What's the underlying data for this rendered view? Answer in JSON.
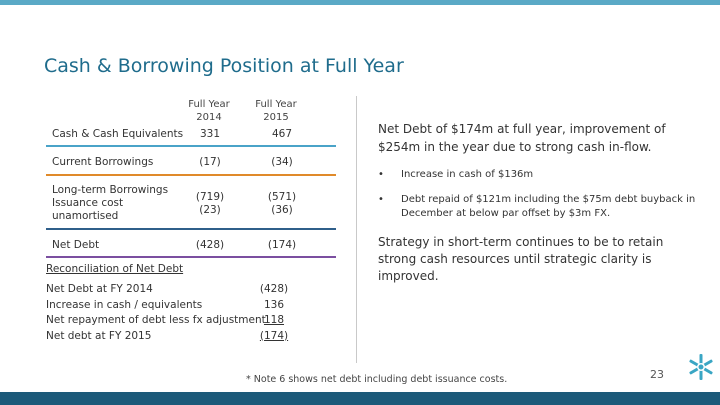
{
  "slide": {
    "title": "Cash & Borrowing Position at Full Year",
    "page_number": "23"
  },
  "table": {
    "columns": [
      {
        "line1": "Full Year",
        "line2": "2014"
      },
      {
        "line1": "Full Year",
        "line2": "2015"
      }
    ],
    "rows": [
      {
        "label": "Cash & Cash Equivalents",
        "v2014": "331",
        "v2015": "467",
        "rule_color": "#4aa3c8"
      },
      {
        "label": "Current Borrowings",
        "v2014": "(17)",
        "v2015": "(34)",
        "rule_color": "#e08a2a"
      },
      {
        "label_lines": [
          "Long-term Borrowings",
          "Issuance cost",
          "unamortised"
        ],
        "v2014_lines": [
          "(719)",
          "(23)"
        ],
        "v2015_lines": [
          "(571)",
          "(36)"
        ],
        "rule_color": "#2f5f8a"
      },
      {
        "label": "Net Debt",
        "v2014": "(428)",
        "v2015": "(174)",
        "rule_color": "#7b4fa0"
      }
    ]
  },
  "reconciliation": {
    "title": "Reconciliation of Net Debt",
    "lines": [
      {
        "label": "Net Debt at FY 2014",
        "value": "(428)"
      },
      {
        "label": "Increase in cash / equivalents",
        "value": "136"
      },
      {
        "label": "Net repayment of debt less fx adjustment",
        "value": "118"
      },
      {
        "label": "Net debt at FY 2015",
        "value": "(174)"
      }
    ]
  },
  "summary": {
    "headline": "Net Debt of $174m at full year, improvement of $254m in the year due to strong cash in-flow.",
    "bullets": [
      "Increase in cash of $136m",
      "Debt repaid of $121m including the $75m debt buyback in December at below par offset by $3m FX."
    ],
    "strategy": "Strategy in short-term continues to be to retain strong cash resources until strategic clarity is improved."
  },
  "footnote": "* Note 6 shows net debt including debt issuance costs.",
  "colors": {
    "title": "#1f6c8c",
    "top_bar": "#5aa9c6",
    "bottom_bar": "#1c5a7a",
    "logo": "#3aa6c4"
  },
  "icons": {
    "logo": "snowflake-logo-icon",
    "bullet": "bullet-dot"
  }
}
